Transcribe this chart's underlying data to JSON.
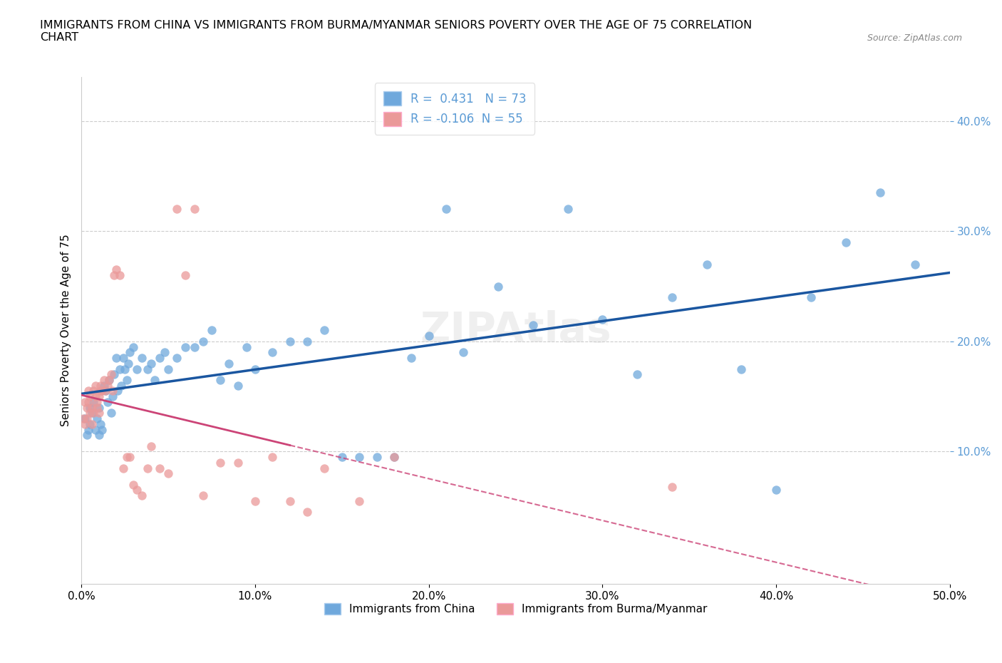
{
  "title": "IMMIGRANTS FROM CHINA VS IMMIGRANTS FROM BURMA/MYANMAR SENIORS POVERTY OVER THE AGE OF 75 CORRELATION\nCHART",
  "source": "Source: ZipAtlas.com",
  "xlabel_china": "Immigrants from China",
  "xlabel_burma": "Immigrants from Burma/Myanmar",
  "ylabel": "Seniors Poverty Over the Age of 75",
  "R_china": 0.431,
  "N_china": 73,
  "R_burma": -0.106,
  "N_burma": 55,
  "xlim": [
    0,
    0.5
  ],
  "ylim": [
    -0.02,
    0.44
  ],
  "xticks": [
    0.0,
    0.1,
    0.2,
    0.3,
    0.4,
    0.5
  ],
  "yticks": [
    0.1,
    0.2,
    0.3,
    0.4
  ],
  "color_china": "#6fa8dc",
  "color_burma": "#ea9999",
  "trendline_china": "#1a56a0",
  "trendline_burma": "#cc4477",
  "background": "#ffffff",
  "china_x": [
    0.002,
    0.003,
    0.004,
    0.005,
    0.005,
    0.006,
    0.007,
    0.008,
    0.009,
    0.01,
    0.01,
    0.011,
    0.012,
    0.013,
    0.014,
    0.015,
    0.016,
    0.017,
    0.018,
    0.019,
    0.02,
    0.021,
    0.022,
    0.023,
    0.024,
    0.025,
    0.026,
    0.027,
    0.028,
    0.03,
    0.032,
    0.035,
    0.038,
    0.04,
    0.042,
    0.045,
    0.048,
    0.05,
    0.055,
    0.06,
    0.065,
    0.07,
    0.075,
    0.08,
    0.085,
    0.09,
    0.095,
    0.1,
    0.11,
    0.12,
    0.13,
    0.14,
    0.15,
    0.16,
    0.17,
    0.18,
    0.19,
    0.2,
    0.21,
    0.22,
    0.24,
    0.26,
    0.28,
    0.3,
    0.32,
    0.34,
    0.36,
    0.38,
    0.4,
    0.42,
    0.44,
    0.46,
    0.48
  ],
  "china_y": [
    0.13,
    0.115,
    0.12,
    0.14,
    0.125,
    0.135,
    0.145,
    0.12,
    0.13,
    0.115,
    0.14,
    0.125,
    0.12,
    0.16,
    0.155,
    0.145,
    0.165,
    0.135,
    0.15,
    0.17,
    0.185,
    0.155,
    0.175,
    0.16,
    0.185,
    0.175,
    0.165,
    0.18,
    0.19,
    0.195,
    0.175,
    0.185,
    0.175,
    0.18,
    0.165,
    0.185,
    0.19,
    0.175,
    0.185,
    0.195,
    0.195,
    0.2,
    0.21,
    0.165,
    0.18,
    0.16,
    0.195,
    0.175,
    0.19,
    0.2,
    0.2,
    0.21,
    0.095,
    0.095,
    0.095,
    0.095,
    0.185,
    0.205,
    0.32,
    0.19,
    0.25,
    0.215,
    0.32,
    0.22,
    0.17,
    0.24,
    0.27,
    0.175,
    0.065,
    0.24,
    0.29,
    0.335,
    0.27
  ],
  "burma_x": [
    0.001,
    0.002,
    0.002,
    0.003,
    0.003,
    0.004,
    0.004,
    0.005,
    0.005,
    0.006,
    0.006,
    0.007,
    0.007,
    0.008,
    0.008,
    0.009,
    0.009,
    0.01,
    0.01,
    0.011,
    0.011,
    0.012,
    0.013,
    0.014,
    0.015,
    0.016,
    0.017,
    0.018,
    0.019,
    0.02,
    0.022,
    0.024,
    0.026,
    0.028,
    0.03,
    0.032,
    0.035,
    0.038,
    0.04,
    0.045,
    0.05,
    0.055,
    0.06,
    0.065,
    0.07,
    0.08,
    0.09,
    0.1,
    0.11,
    0.12,
    0.13,
    0.14,
    0.16,
    0.18,
    0.34
  ],
  "burma_y": [
    0.13,
    0.145,
    0.125,
    0.14,
    0.13,
    0.145,
    0.155,
    0.15,
    0.135,
    0.14,
    0.125,
    0.155,
    0.135,
    0.15,
    0.16,
    0.145,
    0.14,
    0.135,
    0.15,
    0.155,
    0.16,
    0.155,
    0.165,
    0.155,
    0.16,
    0.165,
    0.17,
    0.155,
    0.26,
    0.265,
    0.26,
    0.085,
    0.095,
    0.095,
    0.07,
    0.065,
    0.06,
    0.085,
    0.105,
    0.085,
    0.08,
    0.32,
    0.26,
    0.32,
    0.06,
    0.09,
    0.09,
    0.055,
    0.095,
    0.055,
    0.045,
    0.085,
    0.055,
    0.095,
    0.068
  ]
}
